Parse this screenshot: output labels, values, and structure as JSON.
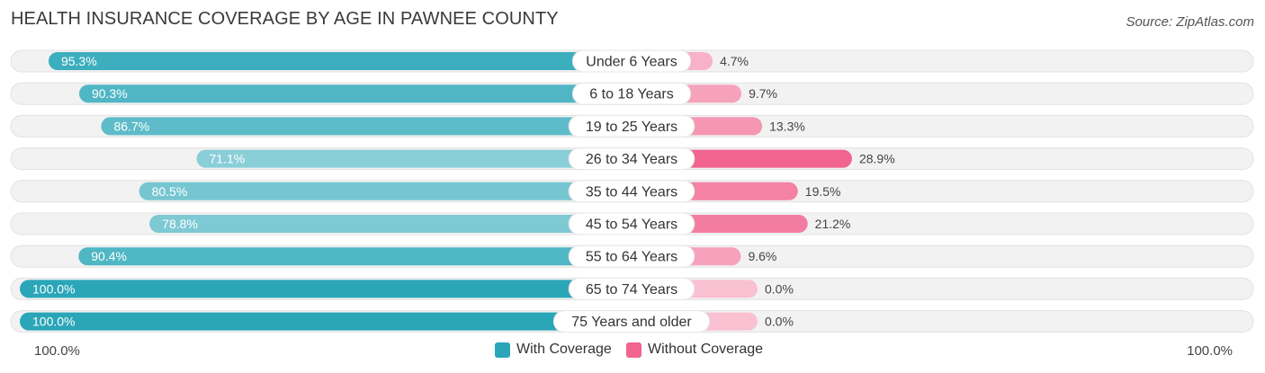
{
  "header": {
    "title": "HEALTH INSURANCE COVERAGE BY AGE IN PAWNEE COUNTY",
    "source": "Source: ZipAtlas.com"
  },
  "colors": {
    "with_coverage": "#2aa6b8",
    "without_coverage": "#f0648f",
    "track": "#efefef"
  },
  "chart_data": {
    "type": "bar",
    "orientation": "diverging-horizontal",
    "title": "HEALTH INSURANCE COVERAGE BY AGE IN PAWNEE COUNTY",
    "categories": [
      "Under 6 Years",
      "6 to 18 Years",
      "19 to 25 Years",
      "26 to 34 Years",
      "35 to 44 Years",
      "45 to 54 Years",
      "55 to 64 Years",
      "65 to 74 Years",
      "75 Years and older"
    ],
    "series": [
      {
        "name": "With Coverage",
        "values": [
          95.3,
          90.3,
          86.7,
          71.1,
          80.5,
          78.8,
          90.4,
          100.0,
          100.0
        ],
        "labels": [
          "95.3%",
          "90.3%",
          "86.7%",
          "71.1%",
          "80.5%",
          "78.8%",
          "90.4%",
          "100.0%",
          "100.0%"
        ]
      },
      {
        "name": "Without Coverage",
        "values": [
          4.7,
          9.7,
          13.3,
          28.9,
          19.5,
          21.2,
          9.6,
          0.0,
          0.0
        ],
        "labels": [
          "4.7%",
          "9.7%",
          "13.3%",
          "28.9%",
          "19.5%",
          "21.2%",
          "9.6%",
          "0.0%",
          "0.0%"
        ]
      }
    ],
    "xlim_left": [
      0,
      100
    ],
    "xlim_right": [
      0,
      100
    ],
    "axis_left_label": "100.0%",
    "axis_right_label": "100.0%",
    "legend": [
      "With Coverage",
      "Without Coverage"
    ],
    "legend_position": "bottom-center"
  }
}
